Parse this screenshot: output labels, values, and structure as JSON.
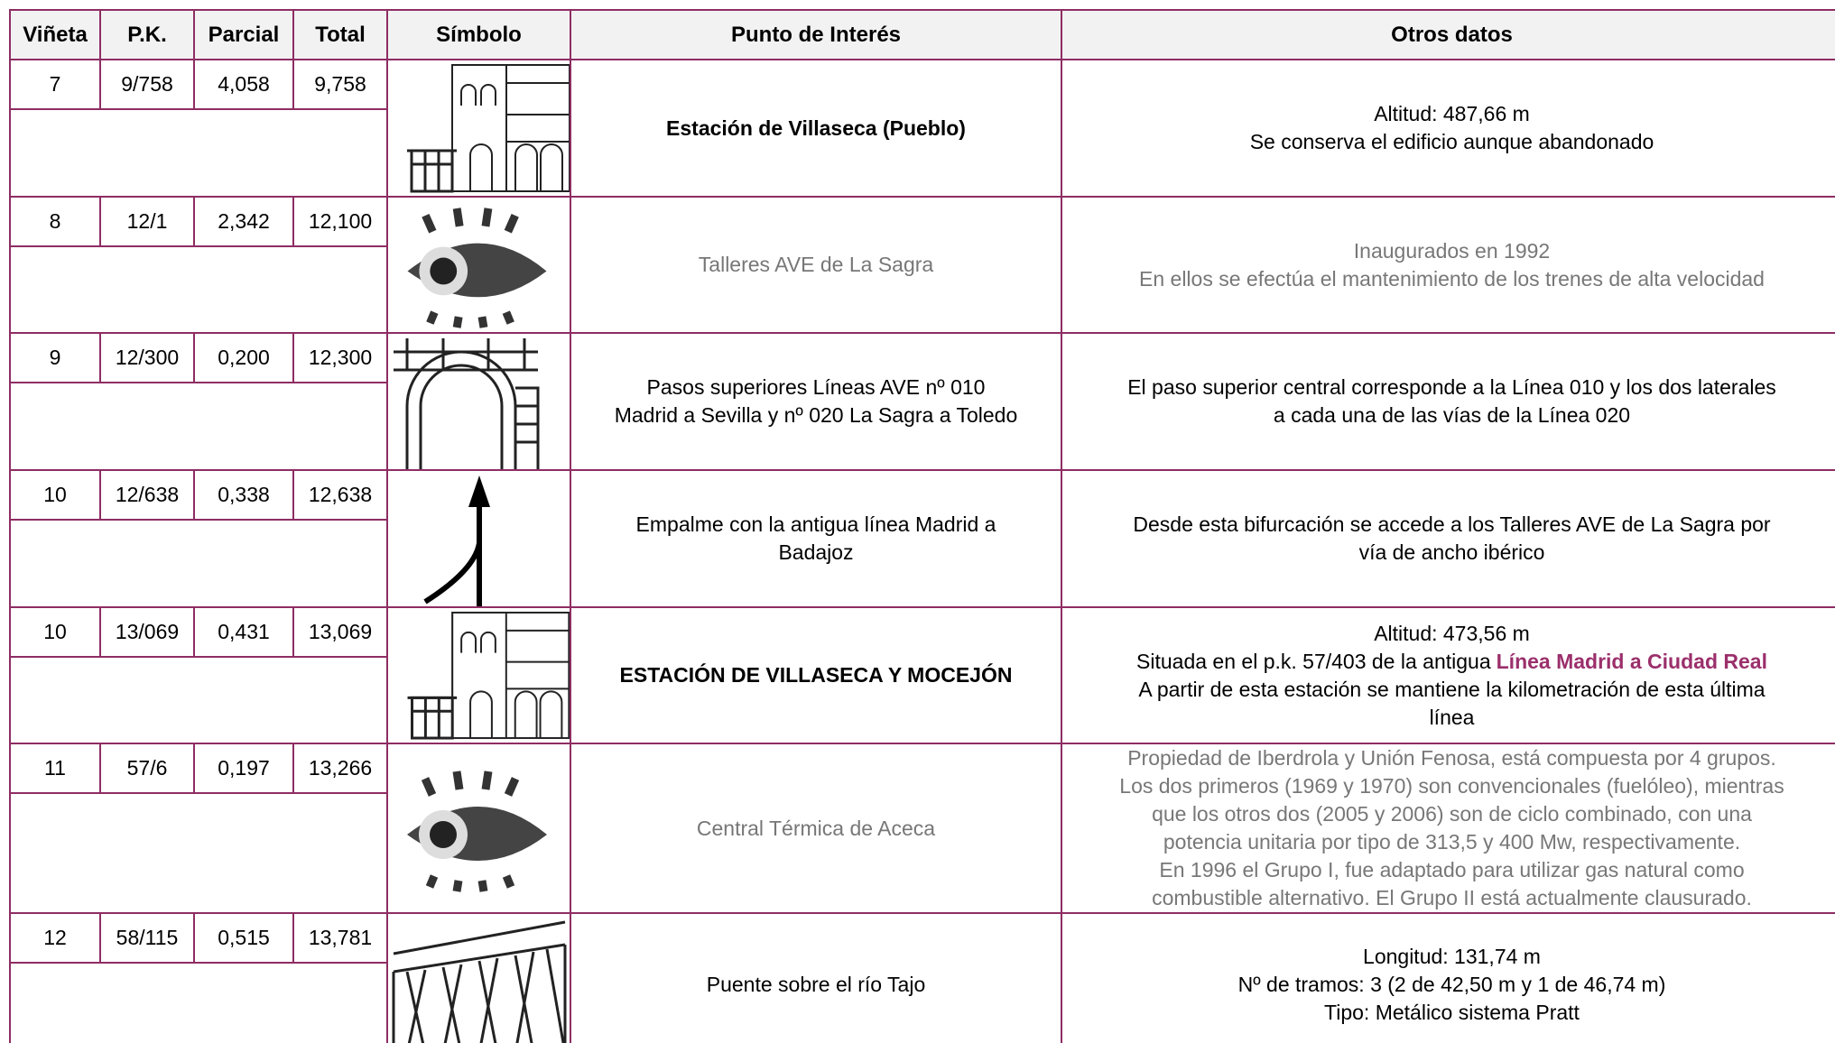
{
  "header": {
    "columns": [
      "Viñeta",
      "P.K.",
      "Parcial",
      "Total",
      "Símbolo",
      "Punto de Interés",
      "Otros datos"
    ]
  },
  "rows": [
    {
      "vineta": "7",
      "pk": "9/758",
      "parcial": "4,058",
      "total": "9,758",
      "point": [
        "Estación de Villaseca (Pueblo)"
      ],
      "other": [
        "Altitud: 487,66 m",
        "Se conserva el edificio aunque abandonado"
      ]
    },
    {
      "vineta": "8",
      "pk": "12/1",
      "parcial": "2,342",
      "total": "12,100",
      "point": [
        "Talleres AVE de La Sagra"
      ],
      "other": [
        "Inaugurados en 1992",
        "En ellos se efectúa el mantenimiento de los trenes de alta velocidad"
      ]
    },
    {
      "vineta": "9",
      "pk": "12/300",
      "parcial": "0,200",
      "total": "12,300",
      "point": [
        "Pasos superiores Líneas AVE nº 010",
        "Madrid a Sevilla y nº 020 La Sagra a Toledo"
      ],
      "other": [
        "El paso superior central corresponde a la Línea 010 y los dos laterales",
        "a cada una de las vías de la Línea 020"
      ]
    },
    {
      "vineta": "10",
      "pk": "12/638",
      "parcial": "0,338",
      "total": "12,638",
      "point": [
        "Empalme con la antigua línea Madrid a",
        "Badajoz"
      ],
      "other": [
        "Desde esta bifurcación se accede a los Talleres AVE de La Sagra por",
        "vía de ancho ibérico"
      ]
    },
    {
      "vineta": "10",
      "pk": "13/069",
      "parcial": "0,431",
      "total": "13,069",
      "point": [
        "ESTACIÓN DE VILLASECA Y MOCEJÓN"
      ],
      "other": [
        "Altitud: 473,56 m",
        [
          "Situada en el p.k. 57/403 de la antigua",
          "Línea Madrid a Ciudad Real"
        ],
        "A partir de esta estación se mantiene la kilometración de esta última",
        "línea"
      ]
    },
    {
      "vineta": "11",
      "pk": "57/6",
      "parcial": "0,197",
      "total": "13,266",
      "point": [
        "Central Térmica de Aceca"
      ],
      "other": [
        "Propiedad de Iberdrola y Unión Fenosa, está compuesta por 4 grupos.",
        "Los dos primeros (1969 y 1970) son convencionales (fuelóleo), mientras",
        "que los otros dos (2005 y 2006) son de ciclo combinado, con una",
        "potencia unitaria por tipo de 313,5 y 400 Mw, respectivamente.",
        "En 1996 el Grupo I, fue adaptado para utilizar gas natural como",
        "combustible alternativo. El Grupo II está actualmente clausurado."
      ]
    },
    {
      "vineta": "12",
      "pk": "58/115",
      "parcial": "0,515",
      "total": "13,781",
      "point": [
        "Puente sobre el río Tajo"
      ],
      "other": [
        "Longitud: 131,74 m",
        "Nº de tramos: 3 (2 de 42,50 m y 1 de 46,74 m)",
        "Tipo: Metálico sistema Pratt"
      ]
    }
  ]
}
